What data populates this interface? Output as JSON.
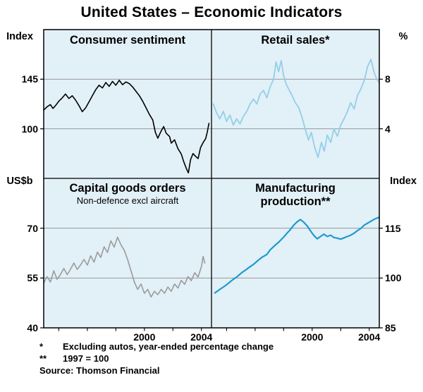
{
  "chart_data": {
    "type": "line",
    "title": "United States – Economic Indicators",
    "source": "Source: Thomson Financial",
    "footnotes": [
      {
        "marker": "*",
        "text": "Excluding autos, year-ended percentage change"
      },
      {
        "marker": "**",
        "text": "1997 = 100"
      }
    ],
    "colors": {
      "plot_bg": "#e2f0f7",
      "frame": "#000000",
      "gridline": "#8c8c8c"
    },
    "x_ticks_f": [
      0.09,
      0.26,
      0.43,
      0.6,
      0.77,
      0.94
    ],
    "panels": [
      {
        "title": "Consumer sentiment",
        "subtitle": "",
        "unit_label": "Index",
        "axis_side": "left",
        "ylim": [
          55,
          190
        ],
        "yticks": [
          {
            "label": "145",
            "value": 145
          },
          {
            "label": "100",
            "value": 100
          }
        ],
        "color": "#000000",
        "line_width": 1.6,
        "points": [
          [
            0.0,
            117
          ],
          [
            0.02,
            120
          ],
          [
            0.04,
            122
          ],
          [
            0.055,
            118.5
          ],
          [
            0.07,
            121
          ],
          [
            0.09,
            125
          ],
          [
            0.11,
            128
          ],
          [
            0.13,
            131.5
          ],
          [
            0.15,
            127.5
          ],
          [
            0.17,
            130
          ],
          [
            0.19,
            126
          ],
          [
            0.21,
            121
          ],
          [
            0.23,
            115.5
          ],
          [
            0.25,
            119
          ],
          [
            0.27,
            124.5
          ],
          [
            0.29,
            130
          ],
          [
            0.31,
            135.5
          ],
          [
            0.33,
            139.5
          ],
          [
            0.35,
            137
          ],
          [
            0.37,
            142
          ],
          [
            0.39,
            138.5
          ],
          [
            0.41,
            143
          ],
          [
            0.43,
            139.5
          ],
          [
            0.45,
            144
          ],
          [
            0.47,
            140
          ],
          [
            0.49,
            142.5
          ],
          [
            0.51,
            141
          ],
          [
            0.53,
            138
          ],
          [
            0.55,
            134
          ],
          [
            0.57,
            130
          ],
          [
            0.59,
            125
          ],
          [
            0.61,
            119
          ],
          [
            0.63,
            113
          ],
          [
            0.65,
            108
          ],
          [
            0.665,
            97
          ],
          [
            0.68,
            91.5
          ],
          [
            0.7,
            98
          ],
          [
            0.715,
            102
          ],
          [
            0.73,
            96
          ],
          [
            0.75,
            93
          ],
          [
            0.76,
            87
          ],
          [
            0.78,
            90
          ],
          [
            0.8,
            82
          ],
          [
            0.82,
            77
          ],
          [
            0.835,
            70
          ],
          [
            0.85,
            64
          ],
          [
            0.862,
            60
          ],
          [
            0.875,
            72
          ],
          [
            0.89,
            77.5
          ],
          [
            0.905,
            75
          ],
          [
            0.92,
            73
          ],
          [
            0.935,
            83
          ],
          [
            0.95,
            87.5
          ],
          [
            0.965,
            91
          ],
          [
            0.975,
            97
          ],
          [
            0.985,
            105
          ]
        ]
      },
      {
        "title": "Retail sales*",
        "subtitle": "",
        "unit_label": "%",
        "axis_side": "right",
        "ylim": [
          0,
          12
        ],
        "yticks": [
          {
            "label": "8",
            "value": 8
          },
          {
            "label": "4",
            "value": 4
          }
        ],
        "color": "#92cfe9",
        "line_width": 1.8,
        "points": [
          [
            0.01,
            6.0
          ],
          [
            0.03,
            5.3
          ],
          [
            0.05,
            4.8
          ],
          [
            0.07,
            5.4
          ],
          [
            0.09,
            4.6
          ],
          [
            0.11,
            5.1
          ],
          [
            0.13,
            4.3
          ],
          [
            0.15,
            4.8
          ],
          [
            0.17,
            4.4
          ],
          [
            0.19,
            5.0
          ],
          [
            0.21,
            5.4
          ],
          [
            0.23,
            6.0
          ],
          [
            0.25,
            6.4
          ],
          [
            0.27,
            6.0
          ],
          [
            0.29,
            6.8
          ],
          [
            0.31,
            7.1
          ],
          [
            0.33,
            6.5
          ],
          [
            0.35,
            7.4
          ],
          [
            0.37,
            8.0
          ],
          [
            0.385,
            9.4
          ],
          [
            0.4,
            8.6
          ],
          [
            0.415,
            9.5
          ],
          [
            0.43,
            8.3
          ],
          [
            0.445,
            7.6
          ],
          [
            0.46,
            7.2
          ],
          [
            0.48,
            6.7
          ],
          [
            0.5,
            6.1
          ],
          [
            0.52,
            5.7
          ],
          [
            0.54,
            4.9
          ],
          [
            0.56,
            3.9
          ],
          [
            0.578,
            3.1
          ],
          [
            0.595,
            3.7
          ],
          [
            0.615,
            2.5
          ],
          [
            0.635,
            1.7
          ],
          [
            0.655,
            2.9
          ],
          [
            0.672,
            2.2
          ],
          [
            0.69,
            3.5
          ],
          [
            0.71,
            2.9
          ],
          [
            0.73,
            4.0
          ],
          [
            0.75,
            3.4
          ],
          [
            0.77,
            4.3
          ],
          [
            0.79,
            4.8
          ],
          [
            0.81,
            5.4
          ],
          [
            0.83,
            6.1
          ],
          [
            0.85,
            5.6
          ],
          [
            0.87,
            6.7
          ],
          [
            0.89,
            7.2
          ],
          [
            0.91,
            7.9
          ],
          [
            0.93,
            9.0
          ],
          [
            0.95,
            9.6
          ],
          [
            0.97,
            8.5
          ],
          [
            0.985,
            8.0
          ],
          [
            1.0,
            7.7
          ]
        ]
      },
      {
        "title": "Capital goods orders",
        "subtitle": "Non-defence excl aircraft",
        "unit_label": "US$b",
        "axis_side": "left",
        "ylim": [
          40,
          85
        ],
        "yticks": [
          {
            "label": "70",
            "value": 70
          },
          {
            "label": "55",
            "value": 55
          },
          {
            "label": "40",
            "value": 40
          }
        ],
        "x_labels": [
          {
            "label": "2000",
            "f": 0.6
          },
          {
            "label": "2004",
            "f": 0.94
          }
        ],
        "color": "#9b9b9b",
        "line_width": 1.6,
        "points": [
          [
            0.0,
            53.5
          ],
          [
            0.02,
            55.4
          ],
          [
            0.04,
            53.8
          ],
          [
            0.06,
            57.2
          ],
          [
            0.08,
            54.6
          ],
          [
            0.1,
            56.1
          ],
          [
            0.12,
            57.9
          ],
          [
            0.14,
            56.0
          ],
          [
            0.16,
            57.7
          ],
          [
            0.18,
            59.5
          ],
          [
            0.2,
            57.6
          ],
          [
            0.22,
            59.0
          ],
          [
            0.24,
            60.6
          ],
          [
            0.26,
            58.9
          ],
          [
            0.28,
            61.7
          ],
          [
            0.3,
            59.8
          ],
          [
            0.32,
            62.8
          ],
          [
            0.34,
            61.2
          ],
          [
            0.36,
            64.4
          ],
          [
            0.38,
            62.7
          ],
          [
            0.4,
            66.2
          ],
          [
            0.42,
            64.3
          ],
          [
            0.44,
            67.3
          ],
          [
            0.46,
            65.0
          ],
          [
            0.48,
            63.4
          ],
          [
            0.5,
            60.6
          ],
          [
            0.52,
            57.2
          ],
          [
            0.54,
            53.8
          ],
          [
            0.56,
            51.6
          ],
          [
            0.58,
            53.2
          ],
          [
            0.6,
            50.4
          ],
          [
            0.62,
            51.6
          ],
          [
            0.64,
            49.3
          ],
          [
            0.66,
            51.0
          ],
          [
            0.68,
            50.0
          ],
          [
            0.7,
            51.6
          ],
          [
            0.72,
            50.4
          ],
          [
            0.74,
            52.3
          ],
          [
            0.76,
            51.0
          ],
          [
            0.78,
            53.2
          ],
          [
            0.8,
            52.0
          ],
          [
            0.82,
            54.3
          ],
          [
            0.84,
            53.1
          ],
          [
            0.86,
            55.4
          ],
          [
            0.88,
            54.2
          ],
          [
            0.9,
            56.6
          ],
          [
            0.92,
            55.3
          ],
          [
            0.94,
            58.4
          ],
          [
            0.95,
            61.5
          ],
          [
            0.96,
            59.5
          ]
        ]
      },
      {
        "title": "Manufacturing production**",
        "subtitle": "",
        "unit_label": "Index",
        "axis_side": "right",
        "ylim": [
          85,
          130
        ],
        "yticks": [
          {
            "label": "115",
            "value": 115
          },
          {
            "label": "100",
            "value": 100
          },
          {
            "label": "85",
            "value": 85
          }
        ],
        "x_labels": [
          {
            "label": "2000",
            "f": 0.6
          },
          {
            "label": "2004",
            "f": 0.94
          }
        ],
        "color": "#1d9ace",
        "line_width": 2.2,
        "points": [
          [
            0.02,
            95.5
          ],
          [
            0.05,
            96.6
          ],
          [
            0.08,
            97.6
          ],
          [
            0.1,
            98.4
          ],
          [
            0.13,
            99.6
          ],
          [
            0.15,
            100.3
          ],
          [
            0.18,
            101.6
          ],
          [
            0.2,
            102.3
          ],
          [
            0.23,
            103.4
          ],
          [
            0.25,
            104.1
          ],
          [
            0.28,
            105.4
          ],
          [
            0.3,
            106.2
          ],
          [
            0.33,
            107.1
          ],
          [
            0.35,
            108.5
          ],
          [
            0.38,
            109.9
          ],
          [
            0.4,
            110.8
          ],
          [
            0.43,
            112.3
          ],
          [
            0.45,
            113.5
          ],
          [
            0.47,
            114.6
          ],
          [
            0.49,
            115.9
          ],
          [
            0.51,
            116.9
          ],
          [
            0.53,
            117.6
          ],
          [
            0.55,
            116.8
          ],
          [
            0.57,
            115.7
          ],
          [
            0.59,
            114.2
          ],
          [
            0.61,
            112.8
          ],
          [
            0.63,
            111.8
          ],
          [
            0.65,
            112.5
          ],
          [
            0.67,
            113.2
          ],
          [
            0.69,
            112.5
          ],
          [
            0.71,
            112.9
          ],
          [
            0.73,
            112.2
          ],
          [
            0.75,
            112.0
          ],
          [
            0.77,
            111.7
          ],
          [
            0.79,
            112.1
          ],
          [
            0.81,
            112.5
          ],
          [
            0.83,
            112.9
          ],
          [
            0.85,
            113.5
          ],
          [
            0.87,
            114.3
          ],
          [
            0.89,
            114.9
          ],
          [
            0.91,
            115.9
          ],
          [
            0.93,
            116.5
          ],
          [
            0.95,
            117.1
          ],
          [
            0.97,
            117.7
          ],
          [
            1.0,
            118.3
          ]
        ]
      }
    ]
  }
}
